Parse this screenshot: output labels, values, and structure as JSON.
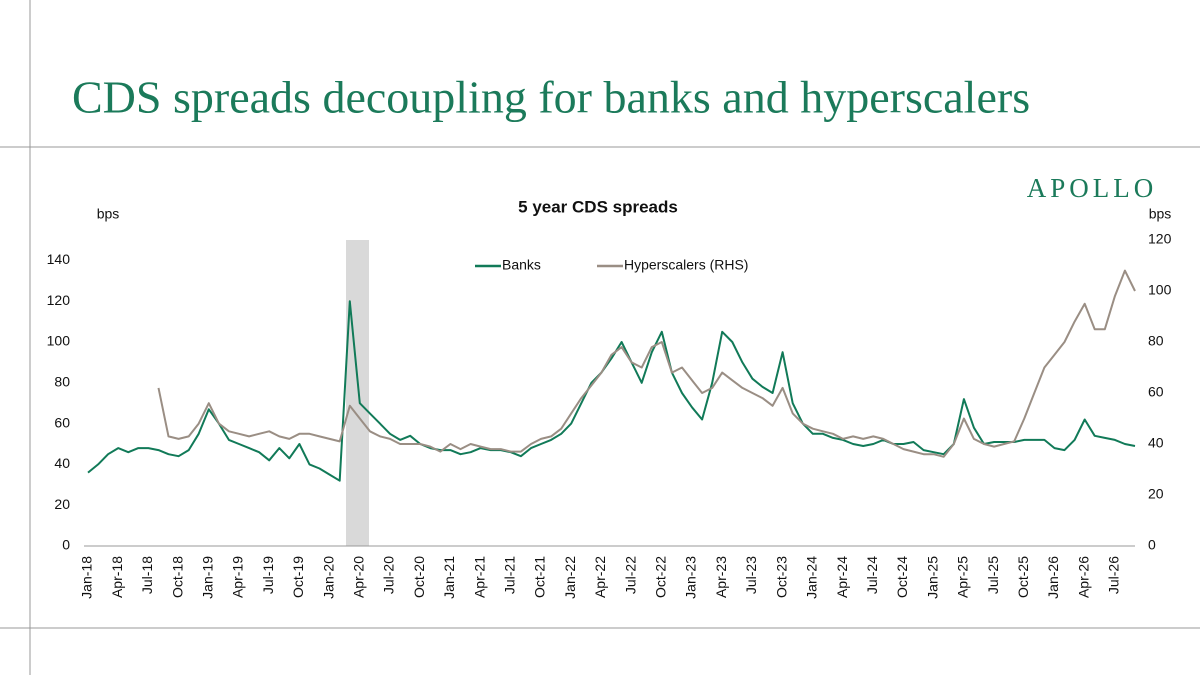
{
  "header": {
    "title": "CDS spreads decoupling for banks and hyperscalers",
    "logo": "APOLLO"
  },
  "chart_data": {
    "type": "line",
    "title": "5 year CDS spreads",
    "y_label": "bps",
    "y2_label": "bps",
    "categories": [
      "Jan-18",
      null,
      null,
      "Apr-18",
      null,
      null,
      "Jul-18",
      null,
      null,
      "Oct-18",
      null,
      null,
      "Jan-19",
      null,
      null,
      "Apr-19",
      null,
      null,
      "Jul-19",
      null,
      null,
      "Oct-19",
      null,
      null,
      "Jan-20",
      null,
      null,
      "Apr-20",
      null,
      null,
      "Jul-20",
      null,
      null,
      "Oct-20",
      null,
      null,
      "Jan-21",
      null,
      null,
      "Apr-21",
      null,
      null,
      "Jul-21",
      null,
      null,
      "Oct-21",
      null,
      null,
      "Jan-22",
      null,
      null,
      "Apr-22",
      null,
      null,
      "Jul-22",
      null,
      null,
      "Oct-22",
      null,
      null,
      "Jan-23",
      null,
      null,
      "Apr-23",
      null,
      null,
      "Jul-23",
      null,
      null,
      "Oct-23",
      null,
      null,
      "Jan-24",
      null,
      null,
      "Apr-24",
      null,
      null,
      "Jul-24",
      null,
      null,
      "Oct-24",
      null,
      null,
      "Jan-25",
      null,
      null,
      "Apr-25",
      null,
      null,
      "Jul-25",
      null,
      null,
      "Oct-25",
      null,
      null,
      "Jan-26",
      null,
      null,
      "Apr-26",
      null,
      null,
      "Jul-26",
      null,
      null
    ],
    "series": [
      {
        "name": "Banks",
        "color": "#117a58",
        "values": [
          36,
          40,
          45,
          48,
          46,
          48,
          48,
          47,
          45,
          44,
          47,
          55,
          67,
          60,
          52,
          50,
          48,
          46,
          42,
          48,
          43,
          50,
          40,
          38,
          35,
          32,
          120,
          70,
          65,
          60,
          55,
          52,
          54,
          50,
          48,
          47,
          47,
          45,
          46,
          48,
          47,
          47,
          46,
          44,
          48,
          50,
          52,
          55,
          60,
          70,
          80,
          85,
          92,
          100,
          90,
          80,
          95,
          105,
          85,
          75,
          68,
          62,
          80,
          105,
          100,
          90,
          82,
          78,
          75,
          95,
          70,
          60,
          55,
          55,
          53,
          52,
          50,
          49,
          50,
          52,
          50,
          50,
          51,
          47,
          46,
          45,
          50,
          72,
          58,
          50,
          51,
          51,
          51,
          52,
          52,
          52,
          48,
          47,
          52,
          62,
          54,
          53,
          52,
          50,
          49
        ]
      },
      {
        "name": "Hyperscalers (RHS)",
        "color": "#9a8e84",
        "axis": "y2",
        "values": [
          null,
          null,
          null,
          null,
          null,
          null,
          null,
          62,
          43,
          42,
          43,
          48,
          56,
          48,
          45,
          44,
          43,
          44,
          45,
          43,
          42,
          44,
          44,
          43,
          42,
          41,
          55,
          50,
          45,
          43,
          42,
          40,
          40,
          40,
          39,
          37,
          40,
          38,
          40,
          39,
          38,
          38,
          37,
          37,
          40,
          42,
          43,
          46,
          52,
          58,
          63,
          68,
          75,
          78,
          72,
          70,
          78,
          80,
          68,
          70,
          65,
          60,
          62,
          68,
          65,
          62,
          60,
          58,
          55,
          62,
          52,
          48,
          46,
          45,
          44,
          42,
          43,
          42,
          43,
          42,
          40,
          38,
          37,
          36,
          36,
          35,
          40,
          50,
          42,
          40,
          39,
          40,
          41,
          50,
          60,
          70,
          75,
          80,
          88,
          95,
          85,
          85,
          98,
          108,
          100
        ]
      }
    ],
    "ylim": [
      0,
      150
    ],
    "yticks": [
      0,
      20,
      40,
      60,
      80,
      100,
      120,
      140
    ],
    "y2lim": [
      0,
      120
    ],
    "y2ticks": [
      0,
      20,
      40,
      60,
      80,
      100,
      120
    ],
    "grid": false
  }
}
